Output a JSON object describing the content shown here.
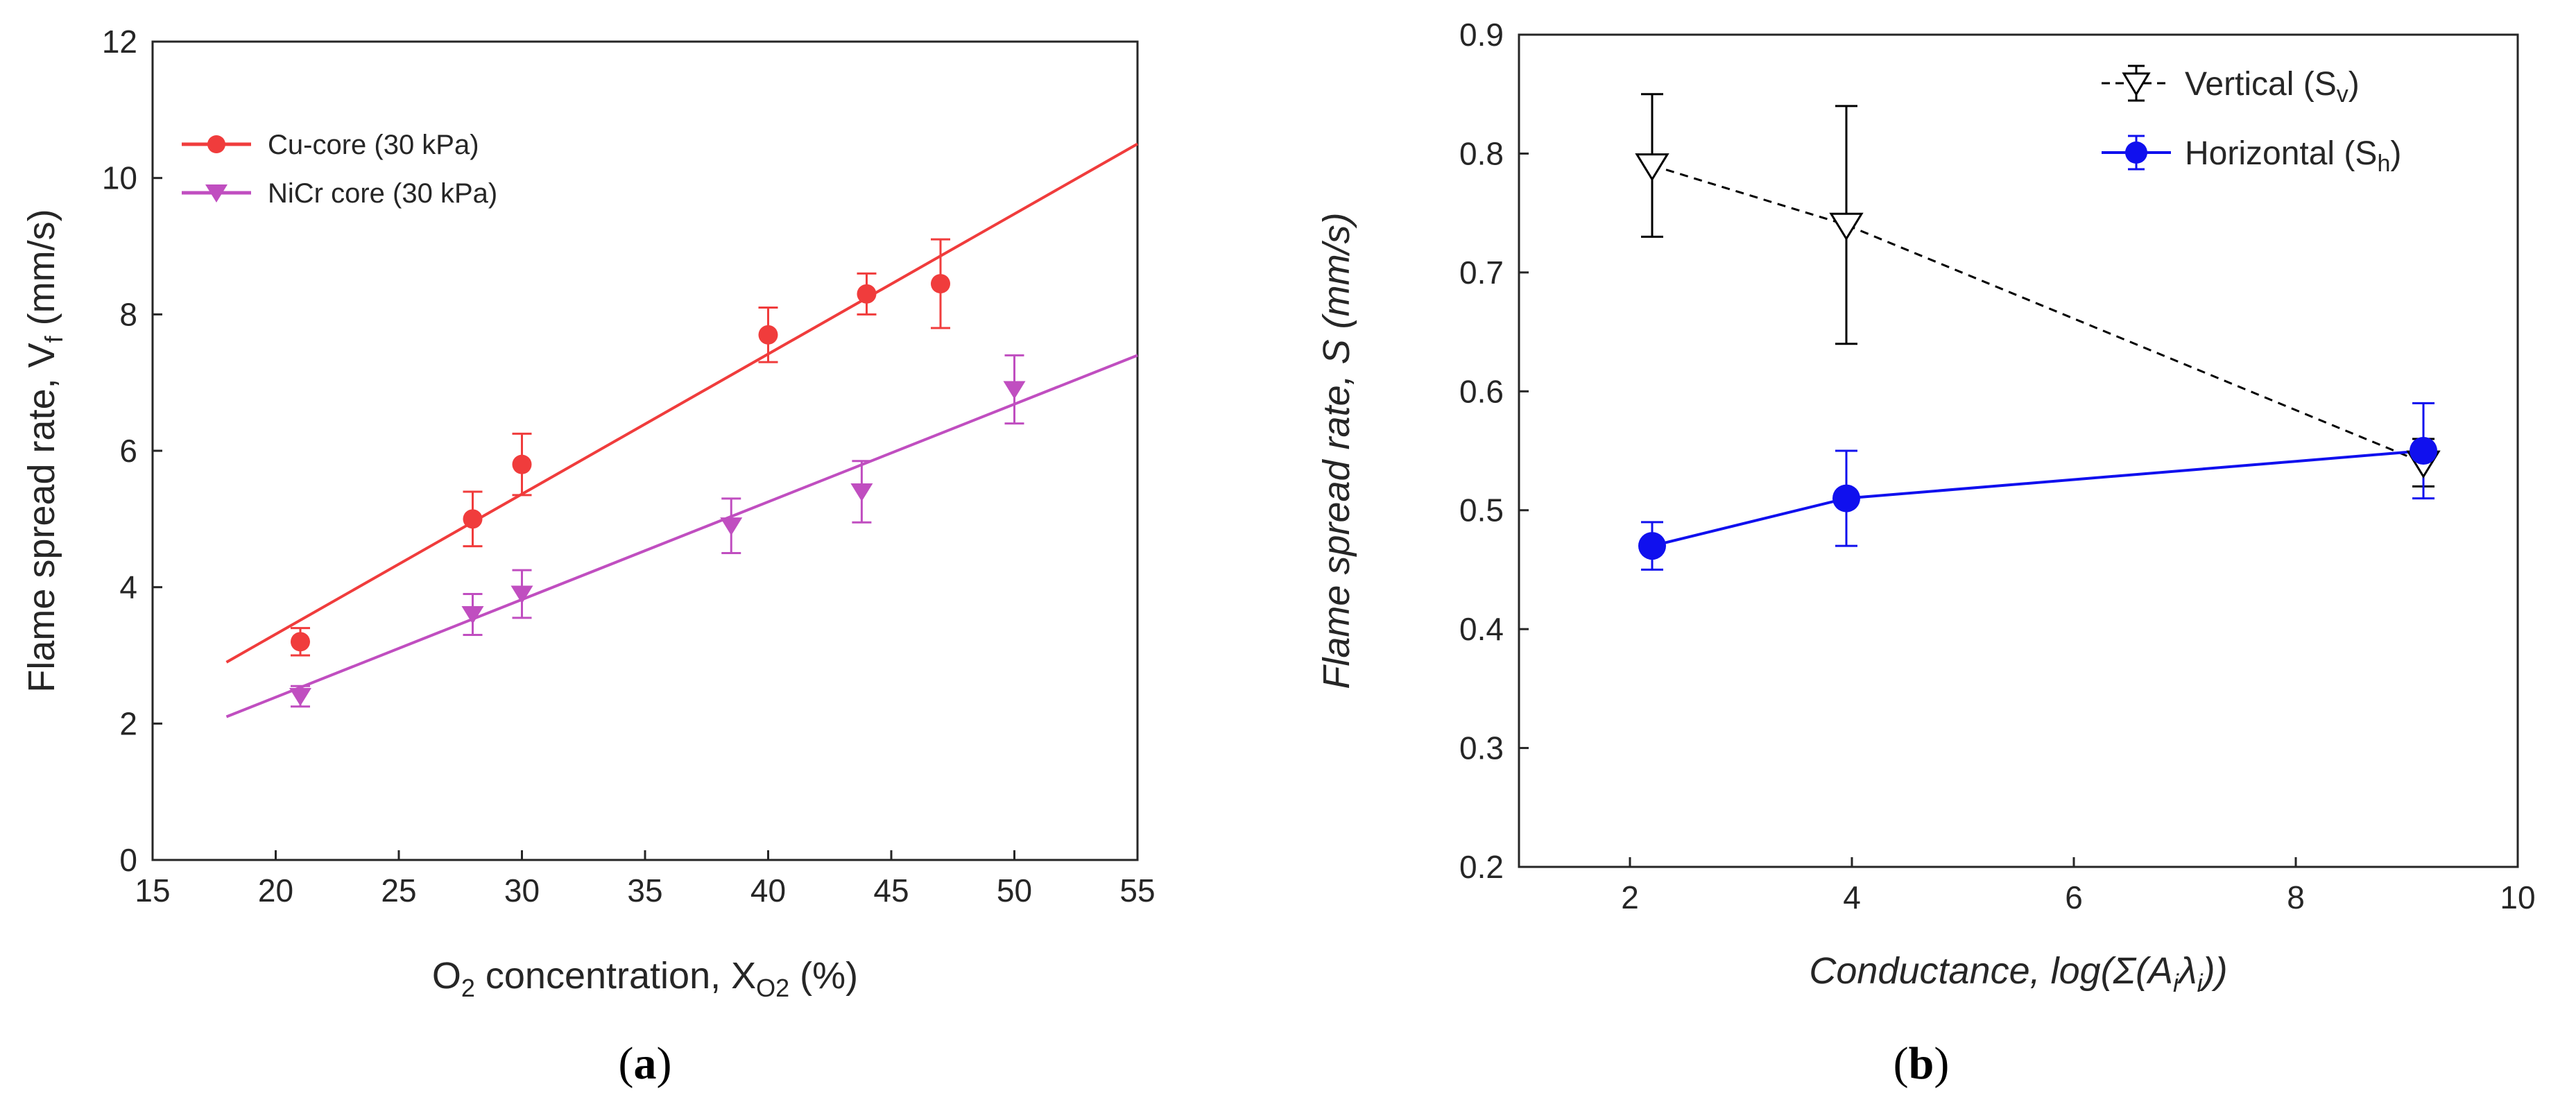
{
  "chart_data": [
    {
      "type": "scatter",
      "panel_label": "a",
      "xlabel": {
        "main": "O",
        "sub1": "2",
        "mid": " concentration, X",
        "sub2": "O2",
        "tail": " (%)"
      },
      "ylabel": {
        "main": "Flame spread rate, V",
        "sub": "f",
        "tail": " (mm/s)"
      },
      "xlim": [
        15,
        55
      ],
      "ylim": [
        0,
        12
      ],
      "x_ticks": [
        15,
        20,
        25,
        30,
        35,
        40,
        45,
        50,
        55
      ],
      "y_ticks": [
        0,
        2,
        4,
        6,
        8,
        10,
        12
      ],
      "grid": false,
      "legend_position": "top-left",
      "series": [
        {
          "name": "Cu-core (30 kPa)",
          "color": "#f03c3c",
          "marker": "circle",
          "x": [
            21,
            28,
            30,
            40,
            44,
            47
          ],
          "y": [
            3.2,
            5.0,
            5.8,
            7.7,
            8.3,
            8.45
          ],
          "err": [
            0.2,
            0.4,
            0.45,
            0.4,
            0.3,
            0.65
          ],
          "fit": {
            "x": [
              18,
              55
            ],
            "y": [
              2.9,
              10.5
            ]
          }
        },
        {
          "name": "NiCr core  (30 kPa)",
          "color": "#c04ec0",
          "marker": "triangle-down",
          "x": [
            21,
            28,
            30,
            38.5,
            43.8,
            50
          ],
          "y": [
            2.4,
            3.6,
            3.9,
            4.9,
            5.4,
            6.9
          ],
          "err": [
            0.15,
            0.3,
            0.35,
            0.4,
            0.45,
            0.5
          ],
          "fit": {
            "x": [
              18,
              55
            ],
            "y": [
              2.1,
              7.4
            ]
          }
        }
      ]
    },
    {
      "type": "line",
      "panel_label": "b",
      "xlabel": {
        "main": "Conductance, log(Σ(A",
        "sub1": "i",
        "mid": "λ",
        "sub2": "i",
        "tail": "))"
      },
      "ylabel": {
        "main": "Flame spread rate, S (mm/s)"
      },
      "xlim": [
        1,
        10
      ],
      "ylim": [
        0.2,
        0.9
      ],
      "x_ticks": [
        2,
        4,
        6,
        8,
        10
      ],
      "y_ticks": [
        0.2,
        0.3,
        0.4,
        0.5,
        0.6,
        0.7,
        0.8,
        0.9
      ],
      "grid": false,
      "legend_position": "top-right",
      "series": [
        {
          "name": "Vertical (S",
          "name_sub": "v",
          "name_tail": ")",
          "color": "#000000",
          "marker": "triangle-down-open",
          "line": "dashed",
          "x": [
            2.2,
            3.95,
            9.15
          ],
          "y": [
            0.79,
            0.74,
            0.54
          ],
          "err_low": [
            0.06,
            0.1,
            0.02
          ],
          "err_high": [
            0.06,
            0.1,
            0.02
          ]
        },
        {
          "name": "Horizontal (S",
          "name_sub": "h",
          "name_tail": ")",
          "color": "#1010ee",
          "marker": "circle",
          "line": "solid",
          "x": [
            2.2,
            3.95,
            9.15
          ],
          "y": [
            0.47,
            0.51,
            0.55
          ],
          "err_low": [
            0.02,
            0.04,
            0.04
          ],
          "err_high": [
            0.02,
            0.04,
            0.04
          ]
        }
      ]
    }
  ]
}
